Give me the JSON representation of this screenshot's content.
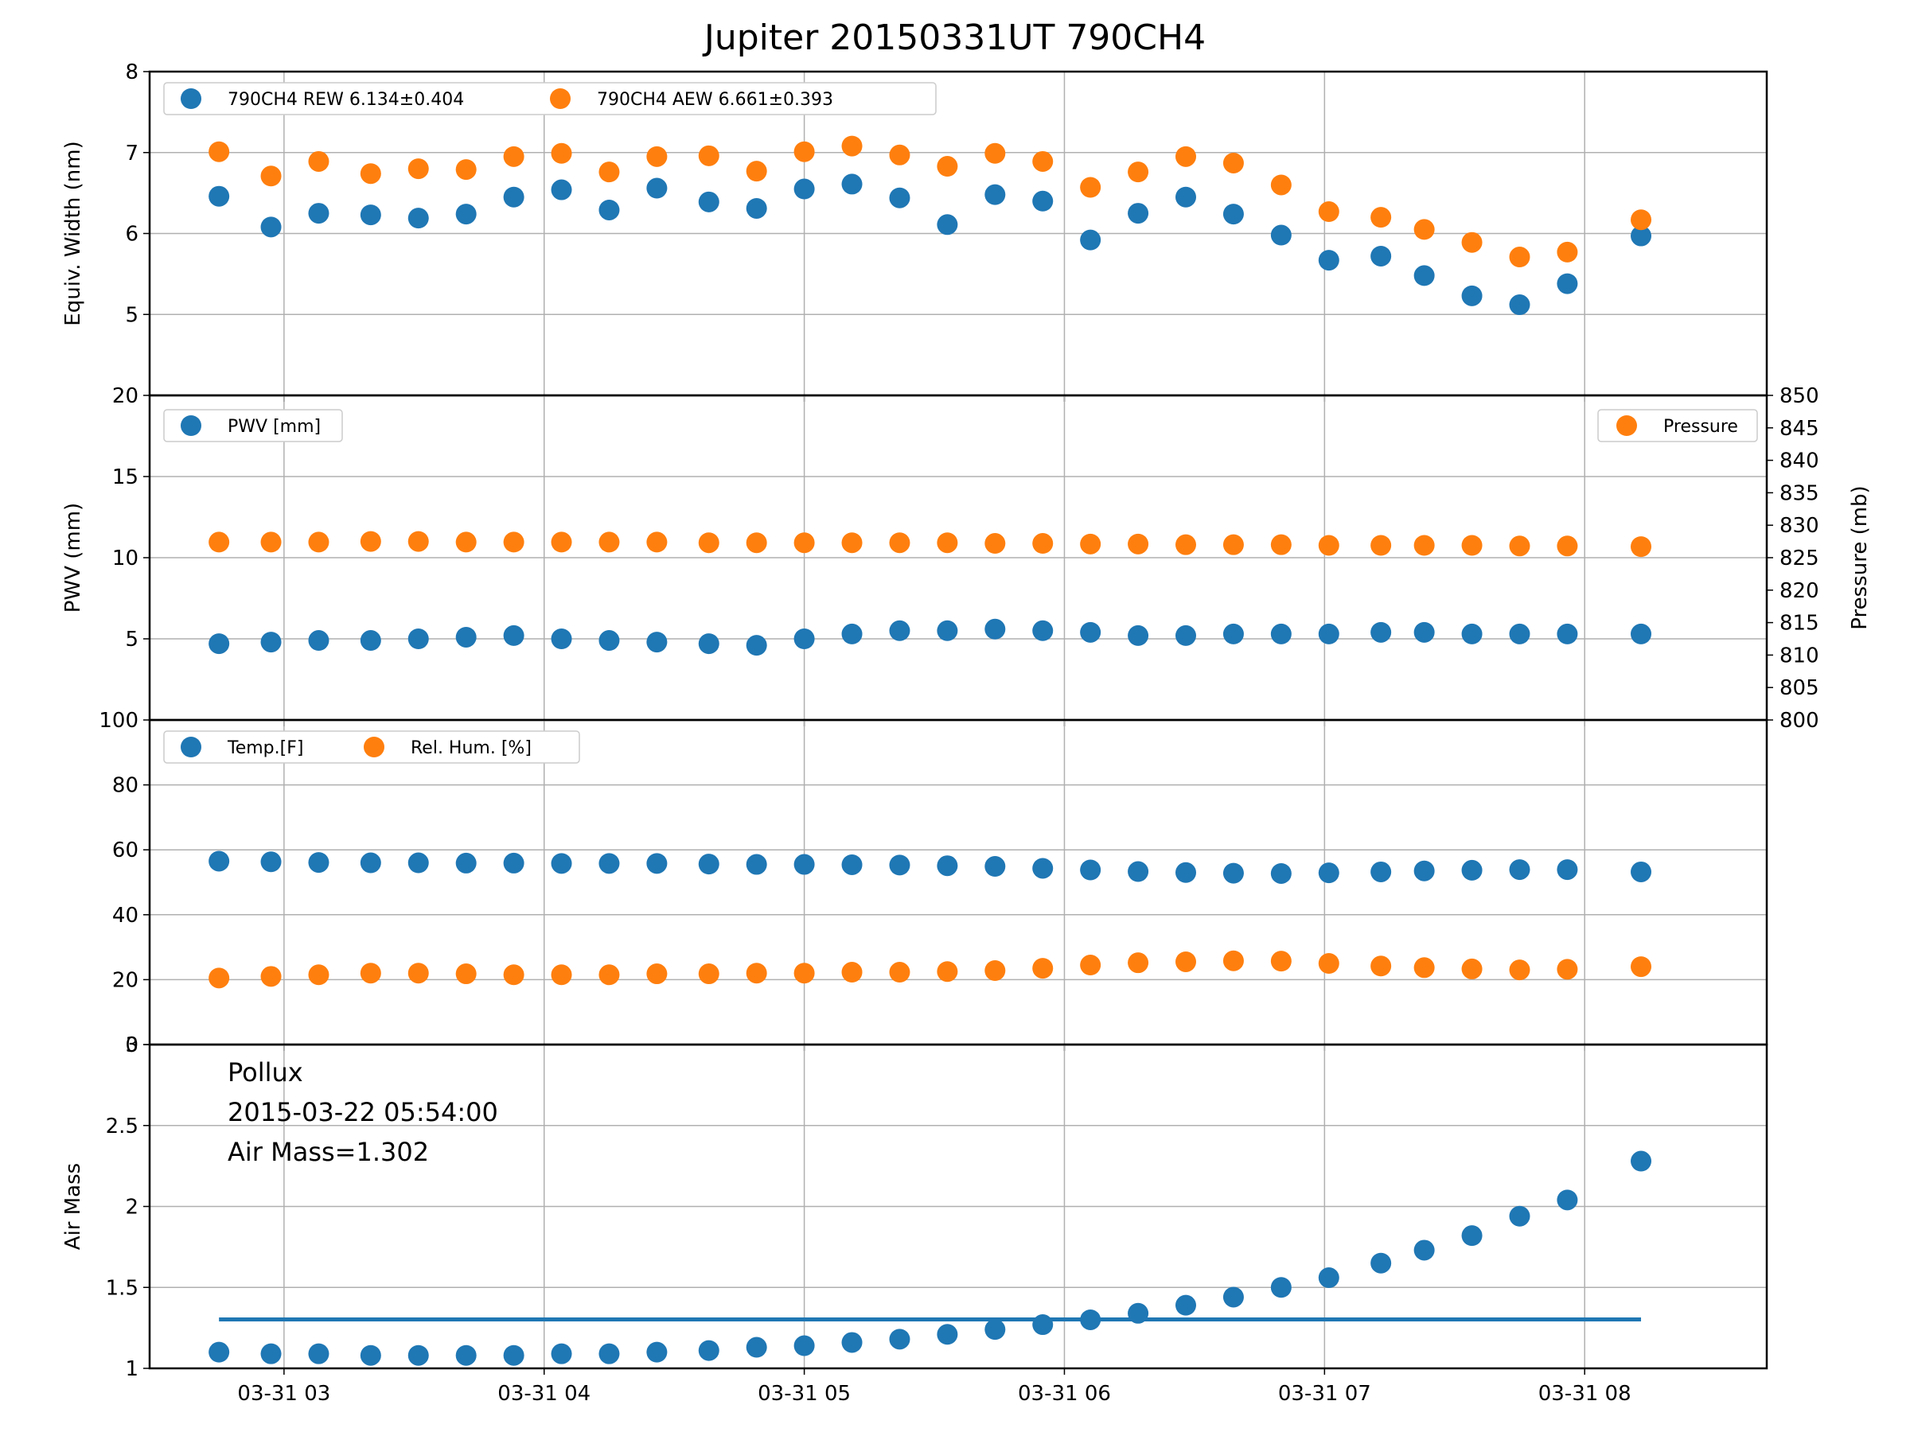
{
  "title": "Jupiter 20150331UT 790CH4",
  "colors": {
    "blue": "#1f77b4",
    "orange": "#ff7f0e",
    "grid": "#b0b0b0"
  },
  "chart_data": [
    {
      "type": "scatter",
      "ylabel": "Equiv. Width (nm)",
      "ylim": [
        4,
        8
      ],
      "yticks": [
        5,
        6,
        7,
        8
      ],
      "grid": true,
      "legend": {
        "placement": "top-left",
        "entries": [
          "790CH4 REW 6.134±0.404",
          "790CH4 AEW 6.661±0.393"
        ]
      },
      "series": [
        {
          "name": "790CH4 REW 6.134±0.404",
          "color": "blue",
          "values": [
            6.46,
            6.08,
            6.25,
            6.23,
            6.19,
            6.24,
            6.45,
            6.54,
            6.29,
            6.56,
            6.39,
            6.31,
            6.55,
            6.61,
            6.44,
            6.11,
            6.48,
            6.4,
            5.92,
            6.25,
            6.45,
            6.24,
            5.98,
            5.67,
            5.72,
            5.48,
            5.23,
            5.12,
            5.38,
            5.97
          ]
        },
        {
          "name": "790CH4 AEW 6.661±0.393",
          "color": "orange",
          "values": [
            7.01,
            6.71,
            6.89,
            6.74,
            6.8,
            6.79,
            6.95,
            6.99,
            6.76,
            6.95,
            6.96,
            6.77,
            7.01,
            7.08,
            6.97,
            6.83,
            6.99,
            6.89,
            6.57,
            6.76,
            6.95,
            6.87,
            6.6,
            6.27,
            6.2,
            6.05,
            5.89,
            5.71,
            5.77,
            6.17
          ]
        }
      ]
    },
    {
      "type": "scatter",
      "ylabel": "PWV (mm)",
      "ylim": [
        0,
        20
      ],
      "yticks": [
        5,
        10,
        15,
        20
      ],
      "y2label": "Pressure (mb)",
      "y2lim": [
        800,
        850
      ],
      "y2ticks": [
        800,
        805,
        810,
        815,
        820,
        825,
        830,
        835,
        840,
        845,
        850
      ],
      "grid": true,
      "legend": {
        "placement": "top-left / top-right",
        "entries": [
          "PWV [mm]",
          "Pressure"
        ]
      },
      "series": [
        {
          "name": "PWV [mm]",
          "color": "blue",
          "axis": "left",
          "values": [
            4.7,
            4.8,
            4.9,
            4.9,
            5.0,
            5.1,
            5.2,
            5.0,
            4.9,
            4.8,
            4.7,
            4.6,
            5.0,
            5.3,
            5.5,
            5.5,
            5.6,
            5.5,
            5.4,
            5.2,
            5.2,
            5.3,
            5.3,
            5.3,
            5.4,
            5.4,
            5.3,
            5.3,
            5.3,
            5.3
          ]
        },
        {
          "name": "Pressure",
          "color": "orange",
          "axis": "right",
          "values": [
            827.4,
            827.4,
            827.4,
            827.5,
            827.5,
            827.4,
            827.4,
            827.4,
            827.4,
            827.4,
            827.3,
            827.3,
            827.3,
            827.3,
            827.3,
            827.3,
            827.2,
            827.2,
            827.1,
            827.1,
            827.0,
            827.0,
            827.0,
            826.9,
            826.9,
            826.9,
            826.9,
            826.8,
            826.8,
            826.7
          ]
        }
      ]
    },
    {
      "type": "scatter",
      "ylim": [
        0,
        100
      ],
      "yticks": [
        0,
        20,
        40,
        60,
        80,
        100
      ],
      "grid": true,
      "legend": {
        "placement": "top-left",
        "entries": [
          "Temp.[F]",
          "Rel. Hum. [%]"
        ]
      },
      "series": [
        {
          "name": "Temp.[F]",
          "color": "blue",
          "values": [
            56.5,
            56.3,
            56.1,
            56.0,
            56.0,
            55.9,
            55.9,
            55.8,
            55.8,
            55.8,
            55.6,
            55.5,
            55.5,
            55.4,
            55.3,
            55.1,
            54.9,
            54.3,
            53.8,
            53.3,
            53.0,
            52.8,
            52.7,
            52.9,
            53.2,
            53.5,
            53.7,
            53.9,
            53.9,
            53.2
          ]
        },
        {
          "name": "Rel. Hum. [%]",
          "color": "orange",
          "values": [
            20.5,
            21.0,
            21.5,
            22.0,
            22.0,
            21.8,
            21.5,
            21.5,
            21.5,
            21.8,
            21.8,
            22.0,
            22.0,
            22.3,
            22.3,
            22.5,
            22.8,
            23.5,
            24.5,
            25.2,
            25.5,
            25.8,
            25.7,
            25.0,
            24.2,
            23.7,
            23.3,
            23.0,
            23.2,
            24.0
          ]
        }
      ]
    },
    {
      "type": "scatter",
      "ylabel": "Air Mass",
      "ylim": [
        1.0,
        3.0
      ],
      "yticks": [
        1.0,
        1.5,
        2.0,
        2.5,
        3.0
      ],
      "grid": true,
      "annotation": [
        "Pollux",
        "2015-03-22 05:54:00",
        "Air Mass=1.302"
      ],
      "reference_line": 1.302,
      "series": [
        {
          "color": "blue",
          "values": [
            1.1,
            1.09,
            1.09,
            1.08,
            1.08,
            1.08,
            1.08,
            1.09,
            1.09,
            1.1,
            1.11,
            1.13,
            1.14,
            1.16,
            1.18,
            1.21,
            1.24,
            1.27,
            1.3,
            1.34,
            1.39,
            1.44,
            1.5,
            1.56,
            1.65,
            1.73,
            1.82,
            1.94,
            2.04,
            2.28
          ]
        }
      ]
    }
  ],
  "x_axis": {
    "times": [
      "02:45",
      "02:57",
      "03:08",
      "03:20",
      "03:31",
      "03:42",
      "03:53",
      "04:04",
      "04:15",
      "04:26",
      "04:38",
      "04:49",
      "05:00",
      "05:11",
      "05:22",
      "05:33",
      "05:44",
      "05:55",
      "06:06",
      "06:17",
      "06:28",
      "06:39",
      "06:50",
      "07:01",
      "07:13",
      "07:23",
      "07:34",
      "07:45",
      "07:56",
      "08:13"
    ],
    "xlim": [
      "02:29",
      "08:42"
    ],
    "ticks": [
      {
        "label": "03-31 03",
        "time": "03:00"
      },
      {
        "label": "03-31 04",
        "time": "04:00"
      },
      {
        "label": "03-31 05",
        "time": "05:00"
      },
      {
        "label": "03-31 06",
        "time": "06:00"
      },
      {
        "label": "03-31 07",
        "time": "07:00"
      },
      {
        "label": "03-31 08",
        "time": "08:00"
      }
    ]
  }
}
